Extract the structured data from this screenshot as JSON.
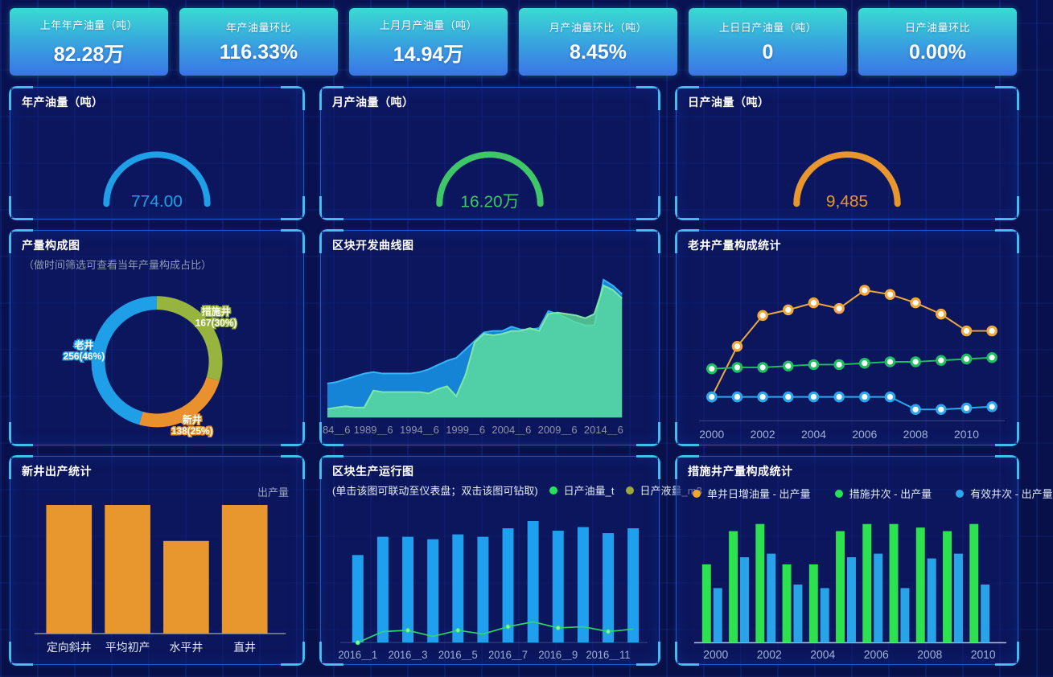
{
  "kpi_cards": [
    {
      "label": "上年年产油量（吨）",
      "value": "82.28万"
    },
    {
      "label": "年产油量环比",
      "value": "116.33%"
    },
    {
      "label": "上月月产油量（吨）",
      "value": "14.94万"
    },
    {
      "label": "月产油量环比（吨）",
      "value": "8.45%"
    },
    {
      "label": "上日日产油量（吨）",
      "value": "0"
    },
    {
      "label": "日产油量环比",
      "value": "0.00%"
    }
  ],
  "panels": {
    "gauge_year": {
      "title": "年产油量（吨）"
    },
    "gauge_month": {
      "title": "月产油量（吨）"
    },
    "gauge_day": {
      "title": "日产油量（吨）"
    },
    "composition": {
      "title": "产量构成图",
      "subtitle": "（做时间筛选可查看当年产量构成占比）"
    },
    "block_curve": {
      "title": "区块开发曲线图"
    },
    "old_well": {
      "title": "老井产量构成统计"
    },
    "new_well": {
      "title": "新井出产统计",
      "legend": "出产量"
    },
    "block_run": {
      "title": "区块生产运行图",
      "subtitle": "(单击该图可联动至仪表盘；双击该图可钻取)",
      "legend": [
        {
          "label": "日产油量_t",
          "color": "#23E35A"
        },
        {
          "label": "日产液量_m3",
          "color": "#9DA83B"
        }
      ]
    },
    "measure_well": {
      "title": "措施井产量构成统计",
      "legend": [
        {
          "label": "单井日增油量 - 出产量",
          "color": "#F2A92B"
        },
        {
          "label": "措施井次 - 出产量",
          "color": "#23E35A"
        },
        {
          "label": "有效井次 - 出产量",
          "color": "#2BA7EE"
        }
      ]
    }
  },
  "chart_data": [
    {
      "id": "gauge-year",
      "type": "gauge",
      "title": "年产油量（吨）",
      "value_label": "774.00",
      "color": "#1E9FE8"
    },
    {
      "id": "gauge-month",
      "type": "gauge",
      "title": "月产油量（吨）",
      "value_label": "16.20万",
      "color": "#3FC668"
    },
    {
      "id": "gauge-day",
      "type": "gauge",
      "title": "日产油量（吨）",
      "value_label": "9,485",
      "color": "#E8962E"
    },
    {
      "id": "donut-composition",
      "type": "pie",
      "title": "产量构成图",
      "start_angle_deg": -90,
      "direction": "clockwise",
      "slices": [
        {
          "label": "措施井",
          "value": 167,
          "pct": "30%",
          "color": "#96B43E"
        },
        {
          "label": "新井",
          "value": 138,
          "pct": "25%",
          "color": "#E8912D"
        },
        {
          "label": "老井",
          "value": 256,
          "pct": "46%",
          "color": "#1E9FE8"
        }
      ]
    },
    {
      "id": "area-block",
      "type": "area",
      "title": "区块开发曲线图",
      "x_labels": [
        "84＿6",
        "1989＿6",
        "1994＿6",
        "1999＿6",
        "2004＿6",
        "2009＿6",
        "2014＿6"
      ],
      "label_every": 5,
      "ylim": [
        0,
        100
      ],
      "series": [
        {
          "name": "日产液量",
          "color": "#1583D6",
          "edge": "#35B5F5",
          "values": [
            24,
            25,
            27,
            29,
            31,
            32,
            31,
            31,
            31,
            31,
            32,
            34,
            37,
            40,
            42,
            48,
            54,
            60,
            61,
            61,
            64,
            62,
            62,
            63,
            75,
            73,
            70,
            67,
            65,
            65,
            97,
            93,
            87
          ]
        },
        {
          "name": "日产油量",
          "color": "rgba(96,226,155,0.8)",
          "edge": "#7FE8A8",
          "values": [
            6,
            7,
            8,
            7,
            7,
            19,
            18,
            18,
            18,
            18,
            18,
            17,
            20,
            22,
            15,
            30,
            53,
            59,
            58,
            59,
            61,
            61,
            63,
            61,
            73,
            74,
            73,
            72,
            70,
            73,
            93,
            90,
            84
          ]
        }
      ]
    },
    {
      "id": "lines-oldwell",
      "type": "line",
      "title": "老井产量构成统计",
      "x": [
        2000,
        2001,
        2002,
        2003,
        2004,
        2005,
        2006,
        2007,
        2008,
        2009,
        2010,
        2011
      ],
      "x_ticks": [
        "2000",
        "2002",
        "2004",
        "2006",
        "2008",
        "2010"
      ],
      "tick_every": 2,
      "ylim": [
        0,
        100
      ],
      "series": [
        {
          "name": "yellow-series",
          "color": "#F2A93B",
          "values": [
            17,
            53,
            75,
            79,
            84,
            80,
            93,
            90,
            84,
            76,
            64,
            64
          ]
        },
        {
          "name": "green-series",
          "color": "#1DBF60",
          "values": [
            37,
            38,
            38,
            39,
            40,
            40,
            41,
            42,
            42,
            43,
            44,
            45
          ]
        },
        {
          "name": "blue-series",
          "color": "#2BA7EE",
          "values": [
            17,
            17,
            17,
            17,
            17,
            17,
            17,
            17,
            8,
            8,
            9,
            10
          ]
        }
      ]
    },
    {
      "id": "bars-newwell",
      "type": "bar",
      "title": "新井出产统计",
      "categories": [
        "定向斜井",
        "平均初产",
        "水平井",
        "直井"
      ],
      "values": [
        100,
        100,
        72,
        100
      ],
      "ylim": [
        0,
        100
      ],
      "series_name": "出产量",
      "color": "#E8962E"
    },
    {
      "id": "barline-blockrun",
      "type": "bar-line",
      "title": "区块生产运行图",
      "x_ticks": [
        "2016＿1",
        "2016＿3",
        "2016＿5",
        "2016＿7",
        "2016＿9",
        "2016＿11"
      ],
      "tick_every": 2,
      "bar_name": "日产液量_m3",
      "bar_color": "#1FA0EF",
      "bar_values": [
        72,
        87,
        87,
        85,
        89,
        87,
        94,
        100,
        92,
        95,
        90,
        94
      ],
      "line_name": "日产油量_t",
      "line_color": "#2BD96A",
      "line_values": [
        0,
        9,
        10,
        5,
        10,
        7,
        13,
        17,
        12,
        13,
        9,
        11
      ],
      "ylim": [
        0,
        100
      ]
    },
    {
      "id": "grouped-measure",
      "type": "grouped-bar",
      "title": "措施井产量构成统计",
      "x_ticks": [
        "2000",
        "2002",
        "2004",
        "2006",
        "2008",
        "2010"
      ],
      "groups": 11,
      "ylim": [
        0,
        100
      ],
      "series": [
        {
          "name": "措施井次 - 出产量",
          "color": "#2CE24E",
          "values": [
            66,
            94,
            100,
            66,
            66,
            94,
            100,
            100,
            97,
            94,
            100
          ]
        },
        {
          "name": "有效井次 - 出产量",
          "color": "#29A3E8",
          "values": [
            46,
            72,
            75,
            49,
            46,
            72,
            75,
            46,
            71,
            75,
            49
          ]
        }
      ]
    }
  ]
}
